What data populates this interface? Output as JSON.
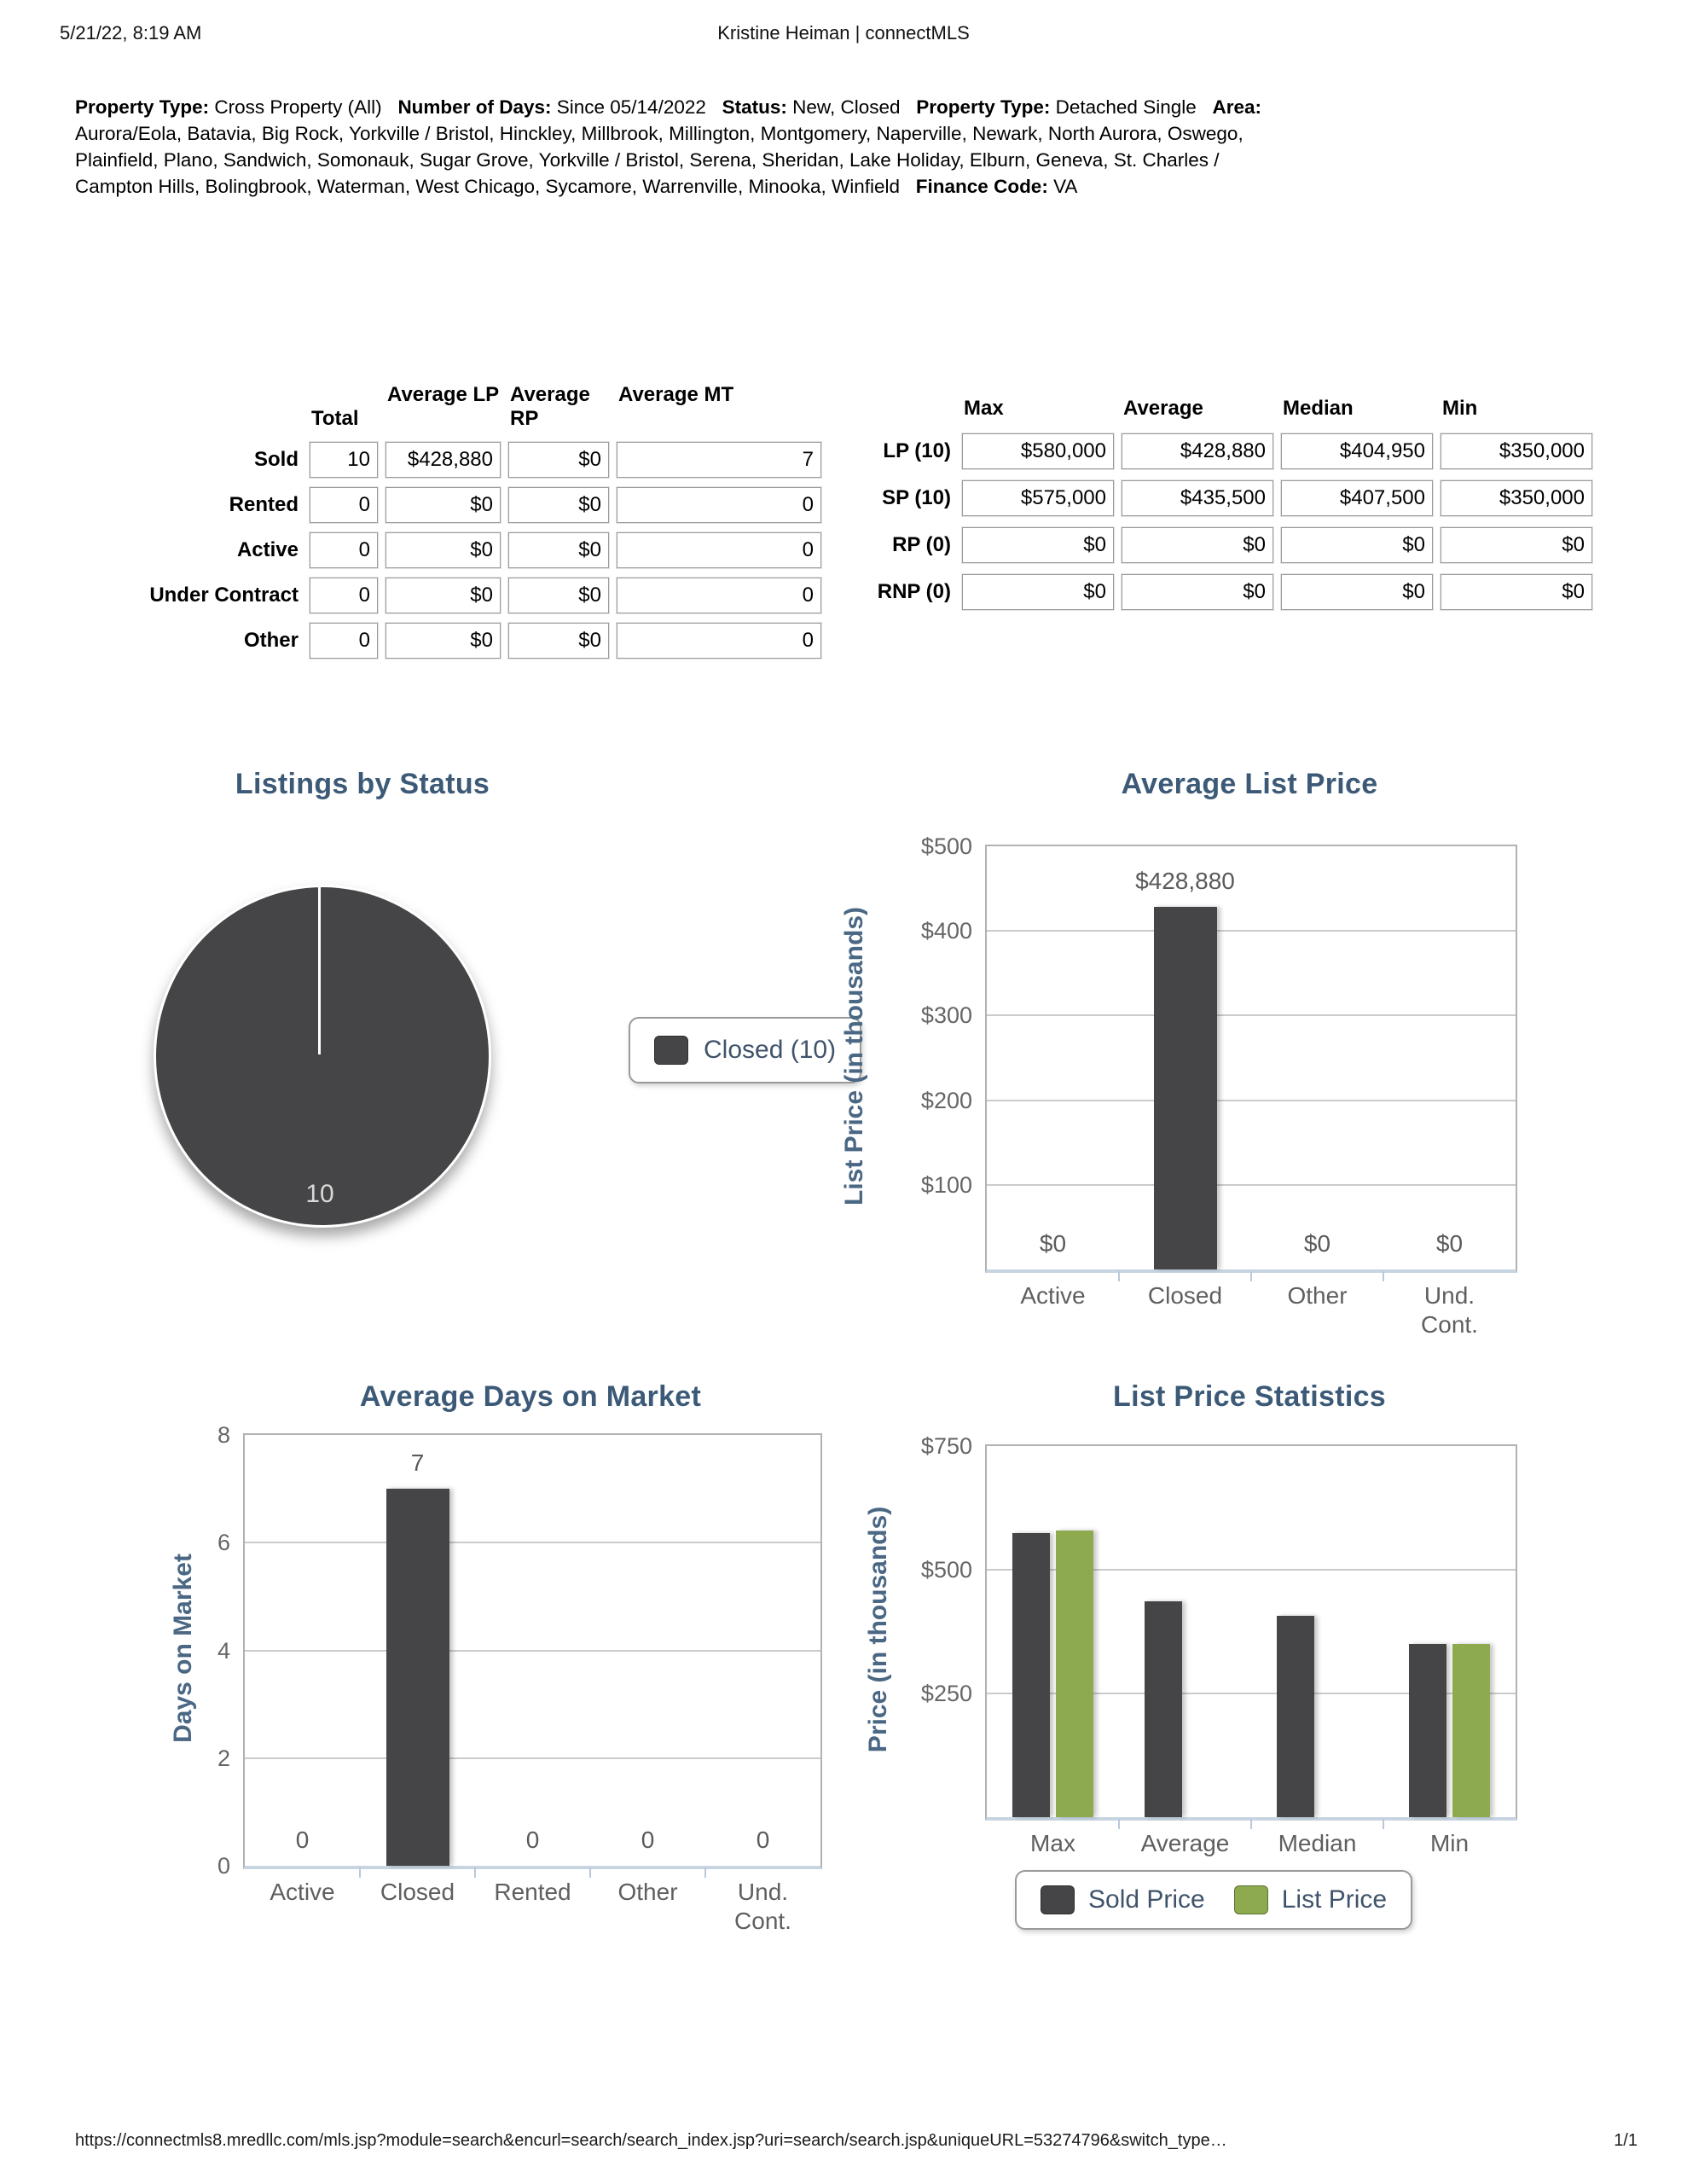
{
  "header": {
    "datetime": "5/21/22, 8:19 AM",
    "title": "Kristine Heiman | connectMLS"
  },
  "criteria": {
    "segments": [
      {
        "label": "Property Type:",
        "value": "Cross Property (All)"
      },
      {
        "label": "Number of Days:",
        "value": "Since 05/14/2022"
      },
      {
        "label": "Status:",
        "value": "New, Closed"
      },
      {
        "label": "Property Type:",
        "value": "Detached Single"
      },
      {
        "label": "Area:",
        "value": "Aurora/Eola, Batavia, Big Rock, Yorkville / Bristol, Hinckley, Millbrook, Millington, Montgomery, Naperville, Newark, North Aurora, Oswego, Plainfield, Plano, Sandwich, Somonauk, Sugar Grove, Yorkville / Bristol, Serena, Sheridan, Lake Holiday, Elburn, Geneva, St. Charles / Campton Hills, Bolingbrook, Waterman, West Chicago, Sycamore, Warrenville, Minooka, Winfield"
      },
      {
        "label": "Finance Code:",
        "value": "VA"
      }
    ]
  },
  "status_table": {
    "headers": [
      "Total",
      "Average LP",
      "Average RP",
      "Average MT"
    ],
    "rows": [
      {
        "label": "Sold",
        "values": [
          "10",
          "$428,880",
          "$0",
          "7"
        ]
      },
      {
        "label": "Rented",
        "values": [
          "0",
          "$0",
          "$0",
          "0"
        ]
      },
      {
        "label": "Active",
        "values": [
          "0",
          "$0",
          "$0",
          "0"
        ]
      },
      {
        "label": "Under Contract",
        "values": [
          "0",
          "$0",
          "$0",
          "0"
        ]
      },
      {
        "label": "Other",
        "values": [
          "0",
          "$0",
          "$0",
          "0"
        ]
      }
    ]
  },
  "price_table": {
    "headers": [
      "Max",
      "Average",
      "Median",
      "Min"
    ],
    "rows": [
      {
        "label": "LP (10)",
        "values": [
          "$580,000",
          "$428,880",
          "$404,950",
          "$350,000"
        ]
      },
      {
        "label": "SP (10)",
        "values": [
          "$575,000",
          "$435,500",
          "$407,500",
          "$350,000"
        ]
      },
      {
        "label": "RP (0)",
        "values": [
          "$0",
          "$0",
          "$0",
          "$0"
        ]
      },
      {
        "label": "RNP (0)",
        "values": [
          "$0",
          "$0",
          "$0",
          "$0"
        ]
      }
    ]
  },
  "colors": {
    "dark_series": "#454547",
    "green_series": "#8dab4e",
    "title_blue": "#3c5a77"
  },
  "chart_data": [
    {
      "type": "pie",
      "title": "Listings by Status",
      "slices": [
        {
          "label": "Closed",
          "value": 10,
          "color": "#454547"
        }
      ],
      "slice_value_label": "10",
      "legend": {
        "position": "right",
        "items": [
          {
            "label": "Closed (10)",
            "color": "#454547"
          }
        ]
      }
    },
    {
      "type": "bar",
      "title": "Average List Price",
      "ylabel": "List Price (in thousands)",
      "ylim": [
        0,
        500
      ],
      "yticks": [
        {
          "v": 100,
          "label": "$100"
        },
        {
          "v": 200,
          "label": "$200"
        },
        {
          "v": 300,
          "label": "$300"
        },
        {
          "v": 400,
          "label": "$400"
        },
        {
          "v": 500,
          "label": "$500"
        }
      ],
      "categories": [
        "Active",
        "Closed",
        "Other",
        "Und. Cont."
      ],
      "series": [
        {
          "name": "List Price",
          "color": "#454547",
          "values": [
            0,
            428.88,
            0,
            0
          ]
        }
      ],
      "bar_labels": [
        "$0",
        "$428,880",
        "$0",
        "$0"
      ],
      "units": "thousands of dollars"
    },
    {
      "type": "bar",
      "title": "Average Days on Market",
      "ylabel": "Days on Market",
      "ylim": [
        0,
        8
      ],
      "yticks": [
        {
          "v": 0,
          "label": "0"
        },
        {
          "v": 2,
          "label": "2"
        },
        {
          "v": 4,
          "label": "4"
        },
        {
          "v": 6,
          "label": "6"
        },
        {
          "v": 8,
          "label": "8"
        }
      ],
      "categories": [
        "Active",
        "Closed",
        "Rented",
        "Other",
        "Und. Cont."
      ],
      "series": [
        {
          "name": "Days on Market",
          "color": "#454547",
          "values": [
            0,
            7,
            0,
            0,
            0
          ]
        }
      ],
      "bar_labels": [
        "0",
        "7",
        "0",
        "0",
        "0"
      ],
      "units": "days"
    },
    {
      "type": "bar",
      "title": "List Price Statistics",
      "ylabel": "Price (in thousands)",
      "ylim": [
        0,
        750
      ],
      "yticks": [
        {
          "v": 250,
          "label": "$250"
        },
        {
          "v": 500,
          "label": "$500"
        },
        {
          "v": 750,
          "label": "$750"
        }
      ],
      "categories": [
        "Max",
        "Average",
        "Median",
        "Min"
      ],
      "series": [
        {
          "name": "Sold Price",
          "color": "#454547",
          "values": [
            575,
            435.5,
            407.5,
            350
          ]
        },
        {
          "name": "List Price",
          "color": "#8dab4e",
          "values": [
            580,
            null,
            null,
            350
          ]
        }
      ],
      "bar_labels": null,
      "units": "thousands of dollars",
      "legend": {
        "position": "bottom",
        "items": [
          {
            "label": "Sold Price",
            "color": "#454547"
          },
          {
            "label": "List Price",
            "color": "#8dab4e"
          }
        ]
      }
    }
  ],
  "footer": {
    "url": "https://connectmls8.mredllc.com/mls.jsp?module=search&encurl=search/search_index.jsp?uri=search/search.jsp&uniqueURL=53274796&switch_type…",
    "page": "1/1"
  }
}
